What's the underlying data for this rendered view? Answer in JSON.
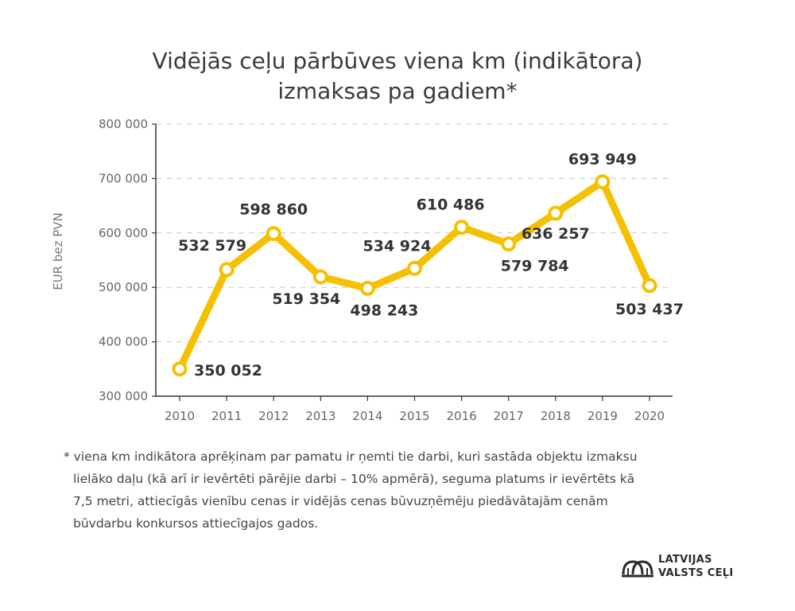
{
  "title_lines": [
    "Vidējās ceļu pārbūves viena km (indikātora)",
    "izmaksas pa gadiem*"
  ],
  "chart_data": {
    "type": "line",
    "title": "Vidējās ceļu pārbūves viena km (indikātora) izmaksas pa gadiem*",
    "xlabel": "",
    "ylabel": "EUR bez PVN",
    "categories": [
      "2010",
      "2011",
      "2012",
      "2013",
      "2014",
      "2015",
      "2016",
      "2017",
      "2018",
      "2019",
      "2020"
    ],
    "values": [
      350052,
      532579,
      598860,
      519354,
      498243,
      534924,
      610486,
      579784,
      636257,
      693949,
      503437
    ],
    "value_labels": [
      "350 052",
      "532 579",
      "598 860",
      "519 354",
      "498 243",
      "534 924",
      "610 486",
      "579 784",
      "636 257",
      "693 949",
      "503 437"
    ],
    "y_ticks": [
      300000,
      400000,
      500000,
      600000,
      700000,
      800000
    ],
    "y_tick_labels": [
      "300 000",
      "400 000",
      "500 000",
      "600 000",
      "700 000",
      "800 000"
    ],
    "ylim": [
      300000,
      800000
    ],
    "grid": true,
    "grid_style": "dashed",
    "line_color": "#f5c000",
    "marker_fill": "#ffffff"
  },
  "footnote_lines": [
    "* viena km indikātora aprēķinam par pamatu ir ņemti tie darbi, kuri sastāda objektu izmaksu",
    "lielāko daļu (kā arī ir ievērtēti pārējie darbi – 10% apmērā), seguma platums ir ievērtēts kā",
    "7,5 metri, attiecīgās vienību cenas ir vidējās cenas būvuzņēmēju piedāvātajām cenām",
    "būvdarbu konkursos attiecīgajos gados."
  ],
  "logo": {
    "line1": "LATVIJAS",
    "line2": "VALSTS CEĻI",
    "icon": "road-arches-icon",
    "color": "#2b2b2b"
  }
}
